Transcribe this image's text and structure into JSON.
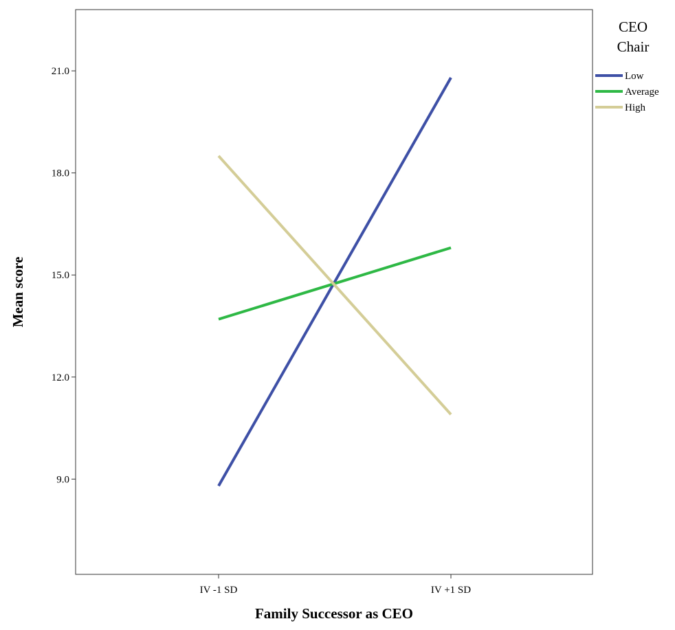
{
  "chart_data": {
    "type": "line",
    "title": "",
    "xlabel": "Family Successor as CEO",
    "ylabel": "Mean score",
    "categories": [
      "IV -1 SD",
      "IV +1 SD"
    ],
    "y_ticks": [
      "9.0",
      "12.0",
      "15.0",
      "18.0",
      "21.0"
    ],
    "ylim": [
      6.2,
      22.8
    ],
    "grid": false,
    "legend": {
      "title_lines": [
        "CEO",
        "Chair"
      ],
      "placement": "top-right-outside"
    },
    "series": [
      {
        "name": "Low",
        "values": [
          8.8,
          20.8
        ],
        "color": "#3e50a6"
      },
      {
        "name": "Average",
        "values": [
          13.7,
          15.8
        ],
        "color": "#2eb845"
      },
      {
        "name": "High",
        "values": [
          18.5,
          10.9
        ],
        "color": "#d4cd97"
      }
    ]
  }
}
